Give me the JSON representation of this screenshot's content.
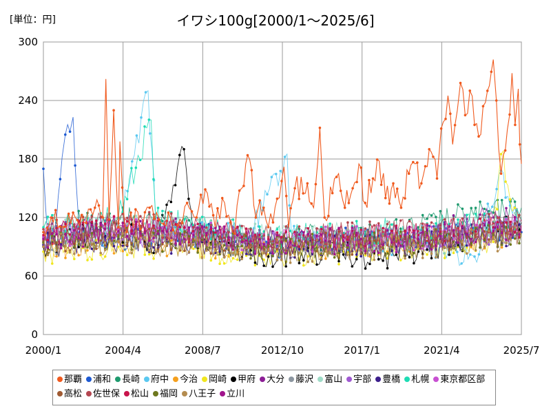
{
  "chart_data": {
    "type": "line",
    "title": "イワシ100g[2000/1～2025/6]",
    "unit_label": "[単位：円]",
    "x_ticks": [
      "2000/1",
      "2004/4",
      "2008/7",
      "2012/10",
      "2017/1",
      "2021/4",
      "2025/7"
    ],
    "y_ticks": [
      "0",
      "60",
      "120",
      "180",
      "240",
      "300"
    ],
    "ylim": [
      0,
      300
    ],
    "xlim": [
      "2000/1",
      "2025/7"
    ],
    "grid": true,
    "legend_position": "bottom",
    "series": [
      {
        "name": "那覇",
        "color": "#f05a1e",
        "highlight": true,
        "values": [
          [
            "2000/1",
            105
          ],
          [
            "2000/6",
            120
          ],
          [
            "2001/1",
            110
          ],
          [
            "2001/8",
            125
          ],
          [
            "2002/3",
            115
          ],
          [
            "2002/10",
            130
          ],
          [
            "2003/3",
            120
          ],
          [
            "2003/5",
            262
          ],
          [
            "2003/7",
            118
          ],
          [
            "2003/10",
            230
          ],
          [
            "2004/1",
            110
          ],
          [
            "2004/2",
            198
          ],
          [
            "2004/5",
            112
          ],
          [
            "2004/9",
            125
          ],
          [
            "2005/3",
            108
          ],
          [
            "2005/9",
            130
          ],
          [
            "2006/3",
            118
          ],
          [
            "2006/9",
            125
          ],
          [
            "2007/3",
            112
          ],
          [
            "2007/9",
            135
          ],
          [
            "2008/3",
            120
          ],
          [
            "2008/10",
            145
          ],
          [
            "2009/3",
            110
          ],
          [
            "2009/9",
            135
          ],
          [
            "2010/2",
            105
          ],
          [
            "2010/8",
            150
          ],
          [
            "2011/1",
            180
          ],
          [
            "2011/5",
            120
          ],
          [
            "2011/10",
            130
          ],
          [
            "2012/4",
            115
          ],
          [
            "2012/8",
            140
          ],
          [
            "2012/11",
            172
          ],
          [
            "2013/2",
            110
          ],
          [
            "2013/6",
            150
          ],
          [
            "2014/2",
            155
          ],
          [
            "2014/6",
            130
          ],
          [
            "2014/10",
            212
          ],
          [
            "2015/1",
            120
          ],
          [
            "2015/6",
            145
          ],
          [
            "2015/10",
            165
          ],
          [
            "2016/2",
            130
          ],
          [
            "2016/7",
            150
          ],
          [
            "2016/11",
            175
          ],
          [
            "2017/3",
            135
          ],
          [
            "2017/8",
            160
          ],
          [
            "2017/12",
            178
          ],
          [
            "2018/4",
            140
          ],
          [
            "2018/9",
            155
          ],
          [
            "2019/2",
            130
          ],
          [
            "2019/7",
            165
          ],
          [
            "2019/11",
            175
          ],
          [
            "2020/3",
            155
          ],
          [
            "2020/8",
            190
          ],
          [
            "2021/1",
            160
          ],
          [
            "2021/5",
            218
          ],
          [
            "2021/8",
            245
          ],
          [
            "2021/11",
            195
          ],
          [
            "2022/2",
            230
          ],
          [
            "2022/4",
            258
          ],
          [
            "2022/7",
            225
          ],
          [
            "2022/10",
            250
          ],
          [
            "2023/1",
            215
          ],
          [
            "2023/5",
            205
          ],
          [
            "2023/8",
            238
          ],
          [
            "2024/1",
            282
          ],
          [
            "2024/3",
            240
          ],
          [
            "2024/6",
            165
          ],
          [
            "2024/10",
            210
          ],
          [
            "2025/1",
            268
          ],
          [
            "2025/3",
            215
          ],
          [
            "2025/5",
            252
          ],
          [
            "2025/6",
            195
          ],
          [
            "2025/7",
            175
          ]
        ]
      },
      {
        "name": "浦和",
        "color": "#1e5ad2",
        "values": [
          [
            "2000/1",
            170
          ],
          [
            "2000/4",
            95
          ],
          [
            "2000/8",
            110
          ],
          [
            "2001/1",
            182
          ],
          [
            "2001/3",
            205
          ],
          [
            "2001/6",
            208
          ],
          [
            "2001/8",
            223
          ],
          [
            "2001/12",
            105
          ],
          [
            "2002/6",
            100
          ],
          [
            "2004/1",
            98
          ],
          [
            "2008/1",
            102
          ],
          [
            "2012/1",
            92
          ],
          [
            "2016/1",
            96
          ],
          [
            "2020/1",
            100
          ],
          [
            "2025/7",
            105
          ]
        ]
      },
      {
        "name": "長崎",
        "color": "#1e9a6e",
        "values": [
          [
            "2000/1",
            100
          ],
          [
            "2002/1",
            115
          ],
          [
            "2004/1",
            120
          ],
          [
            "2006/1",
            112
          ],
          [
            "2008/1",
            110
          ],
          [
            "2010/1",
            98
          ],
          [
            "2012/1",
            95
          ],
          [
            "2014/1",
            100
          ],
          [
            "2016/1",
            98
          ],
          [
            "2018/1",
            102
          ],
          [
            "2020/1",
            110
          ],
          [
            "2022/1",
            120
          ],
          [
            "2024/1",
            125
          ],
          [
            "2025/7",
            130
          ]
        ]
      },
      {
        "name": "府中",
        "color": "#5ac8f0",
        "values": [
          [
            "2000/1",
            95
          ],
          [
            "2004/1",
            105
          ],
          [
            "2005/8",
            250
          ],
          [
            "2006/1",
            110
          ],
          [
            "2008/1",
            105
          ],
          [
            "2011/1",
            100
          ],
          [
            "2013/1",
            185
          ],
          [
            "2013/4",
            100
          ],
          [
            "2016/1",
            95
          ],
          [
            "2020/1",
            95
          ],
          [
            "2023/1",
            80
          ],
          [
            "2024/6",
            168
          ],
          [
            "2025/7",
            100
          ]
        ]
      },
      {
        "name": "今治",
        "color": "#f5a01e",
        "values": [
          [
            "2000/1",
            90
          ],
          [
            "2004/1",
            95
          ],
          [
            "2008/1",
            92
          ],
          [
            "2012/1",
            88
          ],
          [
            "2016/1",
            90
          ],
          [
            "2020/1",
            92
          ],
          [
            "2024/1",
            100
          ],
          [
            "2025/7",
            105
          ]
        ]
      },
      {
        "name": "岡崎",
        "color": "#f0e61e",
        "values": [
          [
            "2000/1",
            85
          ],
          [
            "2004/1",
            90
          ],
          [
            "2008/1",
            88
          ],
          [
            "2012/1",
            82
          ],
          [
            "2016/1",
            85
          ],
          [
            "2020/1",
            88
          ],
          [
            "2024/1",
            95
          ],
          [
            "2024/6",
            185
          ],
          [
            "2025/7",
            100
          ]
        ]
      },
      {
        "name": "甲府",
        "color": "#000000",
        "values": [
          [
            "2000/1",
            90
          ],
          [
            "2002/1",
            100
          ],
          [
            "2004/1",
            105
          ],
          [
            "2006/1",
            95
          ],
          [
            "2007/7",
            190
          ],
          [
            "2008/1",
            100
          ],
          [
            "2010/1",
            90
          ],
          [
            "2012/1",
            80
          ],
          [
            "2014/1",
            85
          ],
          [
            "2016/1",
            82
          ],
          [
            "2018/1",
            78
          ],
          [
            "2020/1",
            85
          ],
          [
            "2022/1",
            95
          ],
          [
            "2024/1",
            110
          ],
          [
            "2025/7",
            115
          ]
        ]
      },
      {
        "name": "大分",
        "color": "#8c1e96",
        "values": [
          [
            "2000/1",
            100
          ],
          [
            "2004/1",
            110
          ],
          [
            "2008/1",
            105
          ],
          [
            "2012/1",
            95
          ],
          [
            "2016/1",
            98
          ],
          [
            "2020/1",
            100
          ],
          [
            "2024/1",
            120
          ],
          [
            "2025/7",
            118
          ]
        ]
      },
      {
        "name": "藤沢",
        "color": "#8c96a0",
        "values": [
          [
            "2000/1",
            95
          ],
          [
            "2004/1",
            100
          ],
          [
            "2008/1",
            98
          ],
          [
            "2012/1",
            92
          ],
          [
            "2016/1",
            94
          ],
          [
            "2020/1",
            96
          ],
          [
            "2024/1",
            105
          ],
          [
            "2025/7",
            108
          ]
        ]
      },
      {
        "name": "富山",
        "color": "#a0dcc8",
        "values": [
          [
            "2000/1",
            105
          ],
          [
            "2004/1",
            112
          ],
          [
            "2008/1",
            108
          ],
          [
            "2012/1",
            100
          ],
          [
            "2016/1",
            102
          ],
          [
            "2020/1",
            104
          ],
          [
            "2024/1",
            110
          ],
          [
            "2025/7",
            112
          ]
        ]
      },
      {
        "name": "宇部",
        "color": "#a05ad2",
        "values": [
          [
            "2000/1",
            98
          ],
          [
            "2004/1",
            104
          ],
          [
            "2008/1",
            100
          ],
          [
            "2012/1",
            94
          ],
          [
            "2016/1",
            96
          ],
          [
            "2020/1",
            98
          ],
          [
            "2024/1",
            106
          ],
          [
            "2025/7",
            110
          ]
        ]
      },
      {
        "name": "豊橋",
        "color": "#3c1e8c",
        "values": [
          [
            "2000/1",
            92
          ],
          [
            "2004/1",
            98
          ],
          [
            "2008/1",
            95
          ],
          [
            "2012/1",
            90
          ],
          [
            "2016/1",
            92
          ],
          [
            "2020/1",
            94
          ],
          [
            "2024/1",
            102
          ],
          [
            "2025/7",
            104
          ]
        ]
      },
      {
        "name": "札幌",
        "color": "#1edcb4",
        "values": [
          [
            "2000/1",
            110
          ],
          [
            "2004/1",
            120
          ],
          [
            "2005/10",
            220
          ],
          [
            "2006/1",
            118
          ],
          [
            "2008/1",
            112
          ],
          [
            "2012/1",
            102
          ],
          [
            "2016/1",
            104
          ],
          [
            "2020/1",
            108
          ],
          [
            "2024/1",
            115
          ],
          [
            "2025/7",
            118
          ]
        ]
      },
      {
        "name": "東京都区部",
        "color": "#c850d2",
        "values": [
          [
            "2000/1",
            100
          ],
          [
            "2004/1",
            108
          ],
          [
            "2008/1",
            104
          ],
          [
            "2012/1",
            96
          ],
          [
            "2016/1",
            98
          ],
          [
            "2020/1",
            100
          ],
          [
            "2024/1",
            108
          ],
          [
            "2025/7",
            110
          ]
        ]
      },
      {
        "name": "高松",
        "color": "#a05a32",
        "values": [
          [
            "2000/1",
            96
          ],
          [
            "2004/1",
            102
          ],
          [
            "2008/1",
            98
          ],
          [
            "2012/1",
            92
          ],
          [
            "2016/1",
            94
          ],
          [
            "2020/1",
            96
          ],
          [
            "2024/1",
            104
          ],
          [
            "2025/7",
            106
          ]
        ]
      },
      {
        "name": "佐世保",
        "color": "#b44650",
        "values": [
          [
            "2000/1",
            108
          ],
          [
            "2004/1",
            114
          ],
          [
            "2008/1",
            110
          ],
          [
            "2012/1",
            100
          ],
          [
            "2016/1",
            102
          ],
          [
            "2020/1",
            106
          ],
          [
            "2024/1",
            114
          ],
          [
            "2025/7",
            116
          ]
        ]
      },
      {
        "name": "松山",
        "color": "#c8144b",
        "values": [
          [
            "2000/1",
            102
          ],
          [
            "2004/1",
            110
          ],
          [
            "2008/1",
            106
          ],
          [
            "2012/1",
            98
          ],
          [
            "2016/1",
            100
          ],
          [
            "2020/1",
            102
          ],
          [
            "2024/1",
            110
          ],
          [
            "2025/7",
            112
          ]
        ]
      },
      {
        "name": "福岡",
        "color": "#6e781e",
        "values": [
          [
            "2000/1",
            94
          ],
          [
            "2004/1",
            100
          ],
          [
            "2008/1",
            96
          ],
          [
            "2012/1",
            90
          ],
          [
            "2016/1",
            92
          ],
          [
            "2020/1",
            94
          ],
          [
            "2024/1",
            102
          ],
          [
            "2025/7",
            104
          ]
        ]
      },
      {
        "name": "八王子",
        "color": "#b48c50",
        "values": [
          [
            "2000/1",
            90
          ],
          [
            "2004/1",
            96
          ],
          [
            "2008/1",
            92
          ],
          [
            "2012/1",
            86
          ],
          [
            "2016/1",
            88
          ],
          [
            "2020/1",
            90
          ],
          [
            "2024/1",
            98
          ],
          [
            "2025/7",
            100
          ]
        ]
      },
      {
        "name": "立川",
        "color": "#a0148c",
        "values": [
          [
            "2000/1",
            98
          ],
          [
            "2004/1",
            106
          ],
          [
            "2008/1",
            102
          ],
          [
            "2012/1",
            94
          ],
          [
            "2016/1",
            96
          ],
          [
            "2020/1",
            98
          ],
          [
            "2024/1",
            106
          ],
          [
            "2025/7",
            108
          ]
        ]
      }
    ]
  }
}
